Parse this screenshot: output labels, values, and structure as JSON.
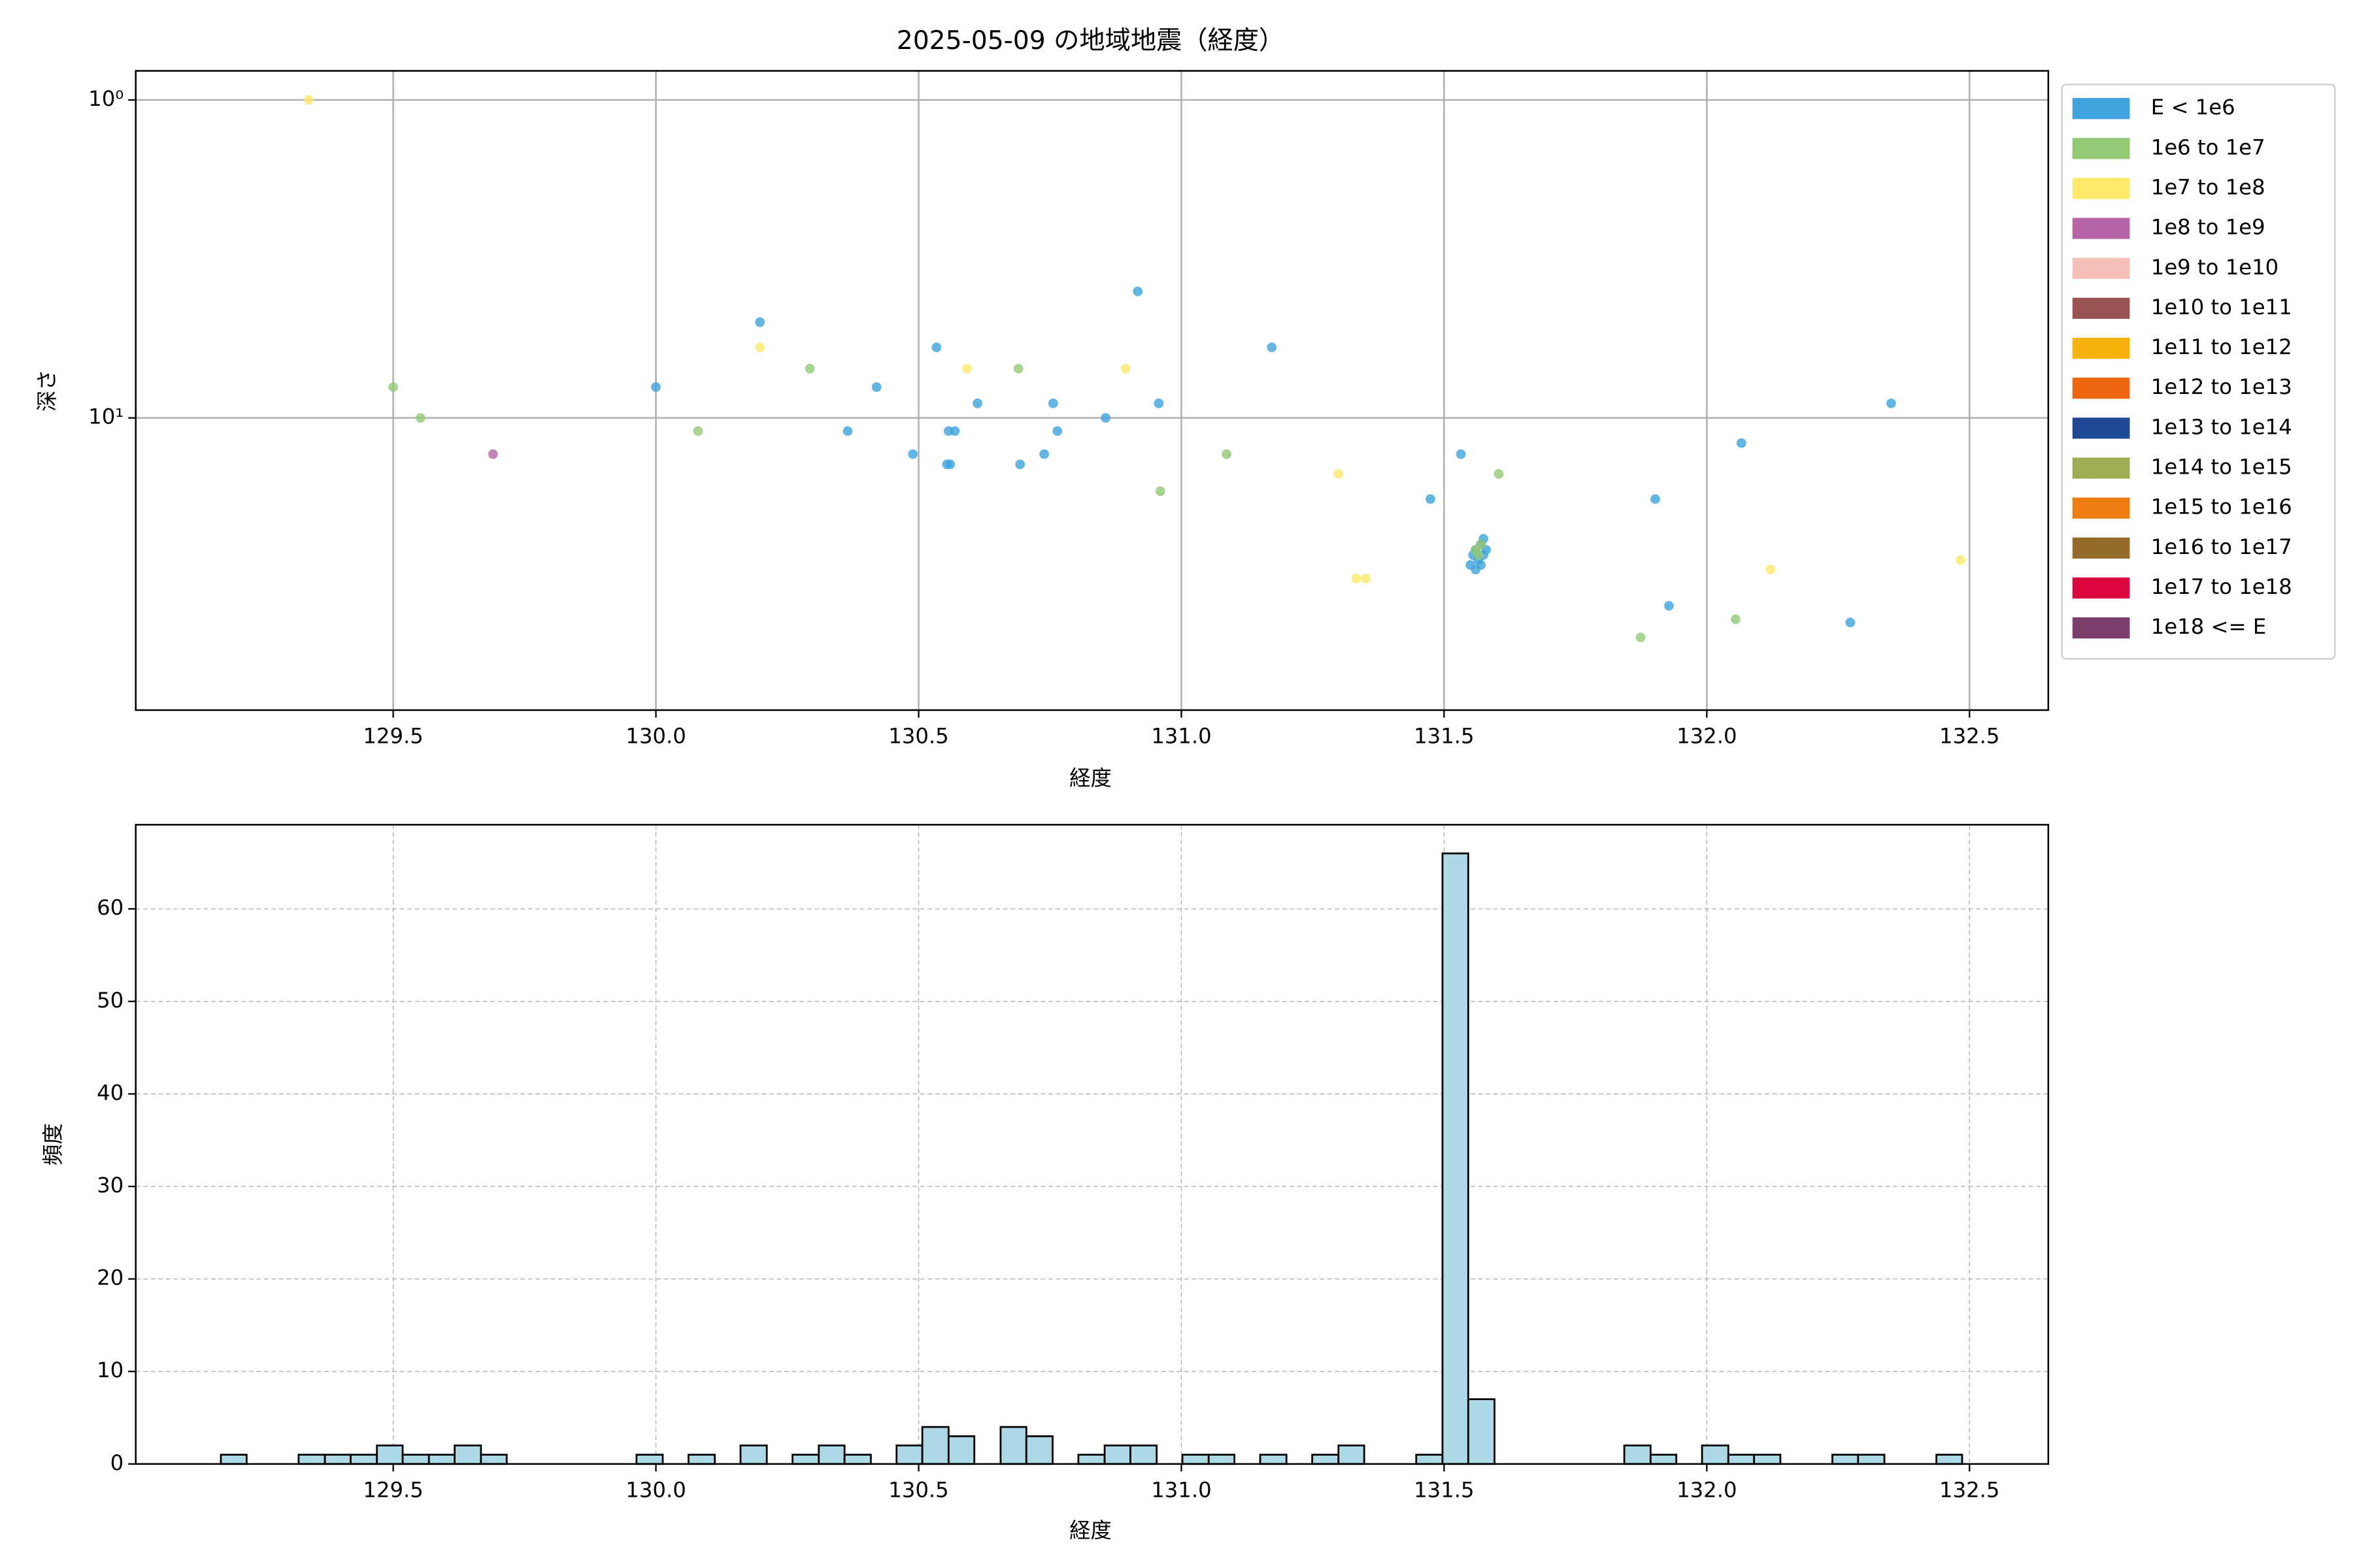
{
  "chart_data": [
    {
      "type": "scatter",
      "title": "2025-05-09 の地域地震（経度）",
      "xlabel": "経度",
      "ylabel": "深さ",
      "xlim": [
        129.01,
        132.65
      ],
      "xticks": [
        129.5,
        {
          "value": 130,
          "label": "130.0"
        },
        130.5,
        {
          "value": 131,
          "label": "131.0"
        },
        131.5,
        {
          "value": 132,
          "label": "132.0"
        },
        132.5
      ],
      "yscale": "log",
      "ylim": [
        83,
        0.81
      ],
      "yticks": [
        {
          "value": 1,
          "label": "10⁰"
        },
        {
          "value": 10,
          "label": "10¹"
        }
      ],
      "grid": true,
      "grid_linestyle": "solid",
      "legend_loc": "outside-upper-right",
      "series": [
        {
          "name": "E < 1e6",
          "color": "#3fa2dc",
          "x": [
            130.198,
            130.0,
            130.534,
            130.42,
            130.365,
            130.489,
            130.557,
            130.569,
            130.554,
            130.56,
            130.612,
            130.693,
            130.739,
            130.756,
            130.764,
            130.856,
            130.917,
            130.957,
            131.172,
            131.474,
            131.532,
            131.902,
            132.066,
            131.928,
            132.273,
            132.351,
            131.55,
            131.555,
            131.56,
            131.565,
            131.57,
            131.575,
            131.58,
            131.56,
            131.57,
            131.575
          ],
          "values": [
            5,
            8,
            6,
            8,
            11,
            13,
            11,
            11,
            14,
            14,
            9,
            14,
            13,
            9,
            11,
            10,
            4,
            9,
            6,
            18,
            13,
            18,
            12,
            39,
            44,
            9,
            29,
            27,
            26,
            28,
            25,
            27,
            26,
            30,
            29,
            24
          ]
        },
        {
          "name": "1e6 to 1e7",
          "color": "#93c874",
          "x": [
            129.5,
            129.552,
            130.08,
            130.293,
            130.69,
            131.086,
            130.96,
            131.604,
            131.874,
            132.055,
            131.56,
            131.565,
            131.57
          ],
          "values": [
            8,
            10,
            11,
            7,
            7,
            13,
            17,
            15,
            49,
            43,
            26,
            27,
            25
          ]
        },
        {
          "name": "1e7 to 1e8",
          "color": "#fde96a",
          "x": [
            129.339,
            130.198,
            130.592,
            130.894,
            131.299,
            131.333,
            131.351,
            132.121,
            132.483
          ],
          "values": [
            1.0,
            6,
            7,
            7,
            15,
            32,
            32,
            30,
            28
          ]
        },
        {
          "name": "1e8 to 1e9",
          "color": "#b564a5",
          "x": [
            129.69
          ],
          "values": [
            13
          ]
        },
        {
          "name": "1e9 to 1e10",
          "color": "#f5c0b8",
          "x": [],
          "values": []
        },
        {
          "name": "1e10 to 1e11",
          "color": "#9c5353",
          "x": [],
          "values": []
        },
        {
          "name": "1e11 to 1e12",
          "color": "#f7b30c",
          "x": [],
          "values": []
        },
        {
          "name": "1e12 to 1e13",
          "color": "#ef6611",
          "x": [],
          "values": []
        },
        {
          "name": "1e13 to 1e14",
          "color": "#1d4a92",
          "x": [],
          "values": []
        },
        {
          "name": "1e14 to 1e15",
          "color": "#9cad52",
          "x": [],
          "values": []
        },
        {
          "name": "1e15 to 1e16",
          "color": "#ee7d11",
          "x": [],
          "values": []
        },
        {
          "name": "1e16 to 1e17",
          "color": "#946b2a",
          "x": [],
          "values": []
        },
        {
          "name": "1e17 to 1e18",
          "color": "#dc073f",
          "x": [],
          "values": []
        },
        {
          "name": "1e18 <= E",
          "color": "#7b3e6d",
          "x": [],
          "values": []
        }
      ]
    },
    {
      "type": "histogram",
      "xlabel": "経度",
      "ylabel": "頻度",
      "color": "#add8e6",
      "edgecolor": "#000000",
      "xlim": [
        129.01,
        132.65
      ],
      "xticks": [
        129.5,
        {
          "value": 130,
          "label": "130.0"
        },
        130.5,
        {
          "value": 131,
          "label": "131.0"
        },
        131.5,
        {
          "value": 132,
          "label": "132.0"
        },
        132.5
      ],
      "ylim": [
        0,
        69.1
      ],
      "yticks": [
        0,
        10,
        20,
        30,
        40,
        50,
        60
      ],
      "grid": true,
      "grid_linestyle": "dashed",
      "bins": [
        129.172,
        129.221,
        129.271,
        129.32,
        129.37,
        129.419,
        129.469,
        129.518,
        129.568,
        129.617,
        129.667,
        129.716,
        129.766,
        129.815,
        129.864,
        129.914,
        129.963,
        130.013,
        130.062,
        130.112,
        130.161,
        130.211,
        130.26,
        130.31,
        130.359,
        130.409,
        130.458,
        130.507,
        130.557,
        130.606,
        130.656,
        130.705,
        130.755,
        130.804,
        130.854,
        130.903,
        130.953,
        131.002,
        131.052,
        131.101,
        131.15,
        131.2,
        131.249,
        131.299,
        131.348,
        131.398,
        131.447,
        131.497,
        131.546,
        131.596,
        131.645,
        131.695,
        131.744,
        131.794,
        131.843,
        131.893,
        131.942,
        131.991,
        132.041,
        132.09,
        132.14,
        132.189,
        132.239,
        132.288,
        132.338,
        132.387,
        132.437,
        132.486
      ],
      "values": [
        1,
        0,
        0,
        1,
        1,
        1,
        2,
        1,
        1,
        2,
        1,
        0,
        0,
        0,
        0,
        0,
        1,
        0,
        1,
        0,
        2,
        0,
        1,
        2,
        1,
        0,
        2,
        4,
        3,
        0,
        4,
        3,
        0,
        1,
        2,
        2,
        0,
        1,
        1,
        0,
        1,
        0,
        1,
        2,
        0,
        0,
        1,
        66,
        7,
        0,
        0,
        0,
        0,
        0,
        2,
        1,
        0,
        2,
        1,
        1,
        0,
        0,
        1,
        1,
        0,
        0,
        1
      ]
    }
  ]
}
